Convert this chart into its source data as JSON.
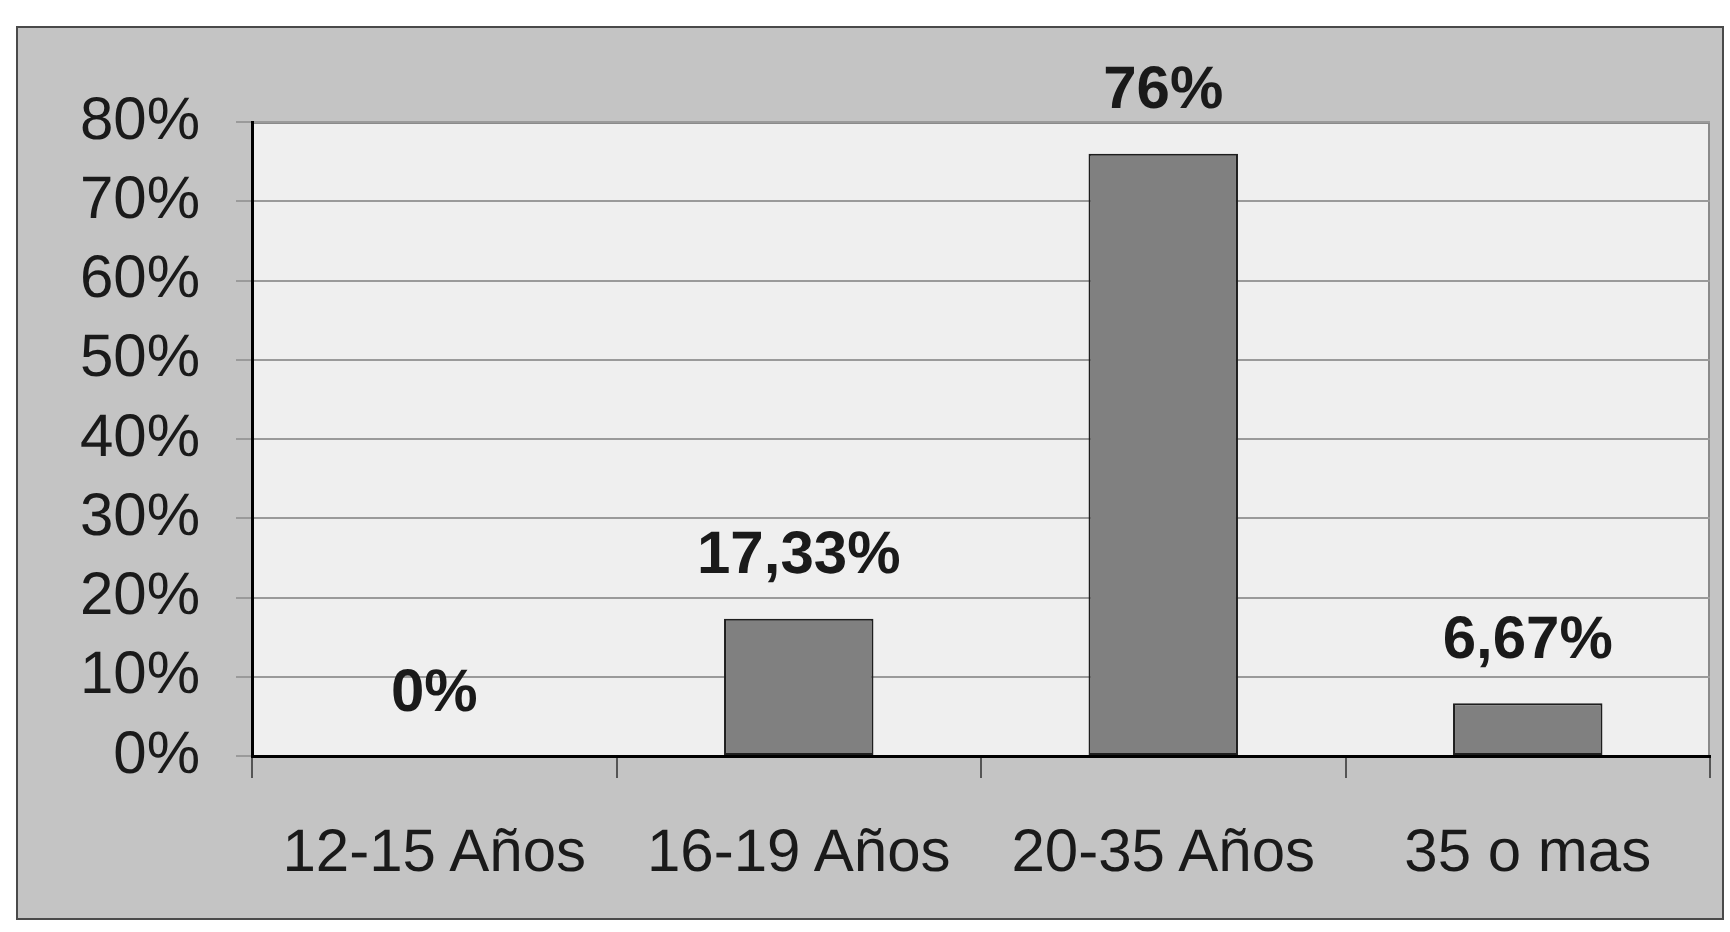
{
  "chart_data": {
    "type": "bar",
    "categories": [
      "12-15 Años",
      "16-19 Años",
      "20-35 Años",
      "35 o mas"
    ],
    "values": [
      0,
      17.33,
      76,
      6.67
    ],
    "value_labels": [
      "0%",
      "17,33%",
      "76%",
      "6,67%"
    ],
    "color": "#808080",
    "ylim": [
      0,
      80
    ],
    "yticks": [
      {
        "value": 0,
        "label": "0%"
      },
      {
        "value": 10,
        "label": "10%"
      },
      {
        "value": 20,
        "label": "20%"
      },
      {
        "value": 30,
        "label": "30%"
      },
      {
        "value": 40,
        "label": "40%"
      },
      {
        "value": 50,
        "label": "50%"
      },
      {
        "value": 60,
        "label": "60%"
      },
      {
        "value": 70,
        "label": "70%"
      },
      {
        "value": 80,
        "label": "80%"
      }
    ],
    "grid": "y"
  }
}
